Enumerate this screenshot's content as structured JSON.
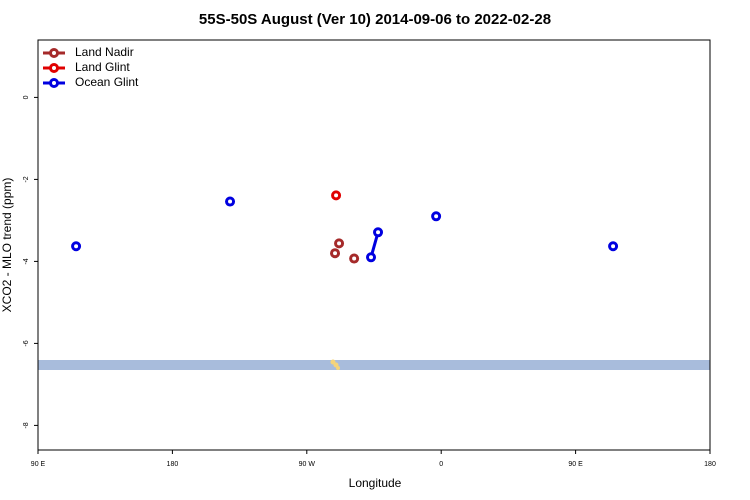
{
  "chart_data": {
    "type": "line",
    "title": "55S-50S August (Ver 10)   2014-09-06 to 2022-02-28",
    "x_label": "Longitude",
    "y_label": "XCO2 - MLO trend (ppm)",
    "xlim": [
      -270,
      180
    ],
    "ylim": [
      1.4,
      -8.6
    ],
    "xticks": [
      {
        "value": -270,
        "label": "90 E"
      },
      {
        "value": -180,
        "label": "180"
      },
      {
        "value": -90,
        "label": "90 W"
      },
      0,
      {
        "value": 90,
        "label": "90 E"
      },
      {
        "value": 180,
        "label": "180"
      }
    ],
    "yticks": [
      0,
      -2,
      -4,
      -6,
      -8
    ],
    "legend": "top-left",
    "series": [
      {
        "name": "Land Nadir",
        "color": "#a52a2a",
        "x": [
          -71.1,
          null,
          -68.4,
          null,
          -58.3
        ],
        "values": [
          -3.8,
          null,
          -3.56,
          null,
          -3.93
        ]
      },
      {
        "name": "Land Glint",
        "color": "#e00000",
        "x": [
          -70.4
        ],
        "values": [
          -2.39
        ]
      },
      {
        "name": "Ocean Glint",
        "color": "#0000e0",
        "x": [
          -244.5,
          null,
          -141.4,
          null,
          -47,
          -42.3,
          null,
          -3.4,
          null,
          115.1
        ],
        "values": [
          -3.63,
          null,
          -2.54,
          null,
          -3.9,
          -3.29,
          null,
          -2.9,
          null,
          -3.63
        ]
      }
    ]
  }
}
